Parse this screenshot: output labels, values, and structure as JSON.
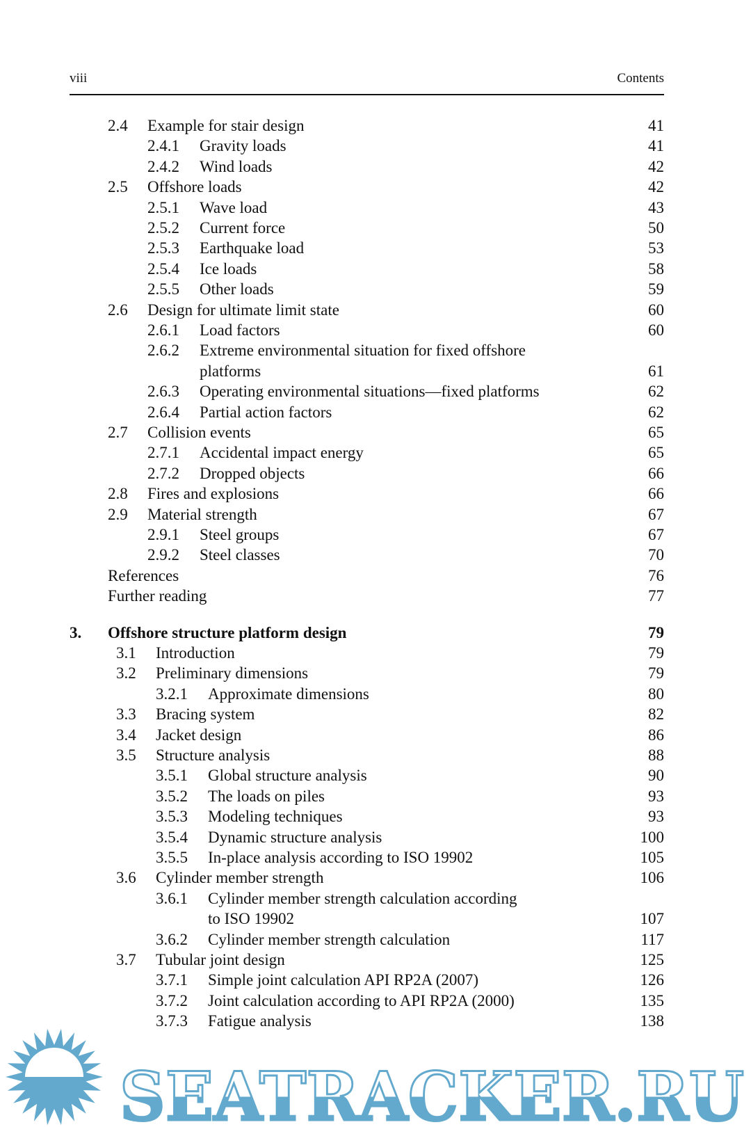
{
  "header": {
    "page_label": "viii",
    "running_title": "Contents"
  },
  "toc": [
    {
      "level": 1,
      "num": "2.4",
      "title": "Example for stair design",
      "page": "41"
    },
    {
      "level": 2,
      "num": "2.4.1",
      "title": "Gravity loads",
      "page": "41"
    },
    {
      "level": 2,
      "num": "2.4.2",
      "title": "Wind loads",
      "page": "42"
    },
    {
      "level": 1,
      "num": "2.5",
      "title": "Offshore loads",
      "page": "42"
    },
    {
      "level": 2,
      "num": "2.5.1",
      "title": "Wave load",
      "page": "43"
    },
    {
      "level": 2,
      "num": "2.5.2",
      "title": "Current force",
      "page": "50"
    },
    {
      "level": 2,
      "num": "2.5.3",
      "title": "Earthquake load",
      "page": "53"
    },
    {
      "level": 2,
      "num": "2.5.4",
      "title": "Ice loads",
      "page": "58"
    },
    {
      "level": 2,
      "num": "2.5.5",
      "title": "Other loads",
      "page": "59"
    },
    {
      "level": 1,
      "num": "2.6",
      "title": "Design for ultimate limit state",
      "page": "60"
    },
    {
      "level": 2,
      "num": "2.6.1",
      "title": "Load factors",
      "page": "60"
    },
    {
      "level": 2,
      "num": "2.6.2",
      "title": "Extreme environmental situation for fixed offshore",
      "title_cont": "platforms",
      "page": "61"
    },
    {
      "level": 2,
      "num": "2.6.3",
      "title": "Operating environmental situations—fixed platforms",
      "page": "62"
    },
    {
      "level": 2,
      "num": "2.6.4",
      "title": "Partial action factors",
      "page": "62"
    },
    {
      "level": 1,
      "num": "2.7",
      "title": "Collision events",
      "page": "65"
    },
    {
      "level": 2,
      "num": "2.7.1",
      "title": "Accidental impact energy",
      "page": "65"
    },
    {
      "level": 2,
      "num": "2.7.2",
      "title": "Dropped objects",
      "page": "66"
    },
    {
      "level": 1,
      "num": "2.8",
      "title": "Fires and explosions",
      "page": "66"
    },
    {
      "level": 1,
      "num": "2.9",
      "title": "Material strength",
      "page": "67"
    },
    {
      "level": 2,
      "num": "2.9.1",
      "title": "Steel groups",
      "page": "67"
    },
    {
      "level": 2,
      "num": "2.9.2",
      "title": "Steel classes",
      "page": "70"
    },
    {
      "level": 1,
      "num": "",
      "title": "References",
      "page": "76"
    },
    {
      "level": 1,
      "num": "",
      "title": "Further reading",
      "page": "77"
    },
    {
      "level": 0,
      "num": "3.",
      "title": "Offshore structure platform design",
      "page": "79",
      "gap_before": true
    },
    {
      "level": 1,
      "num": "3.1",
      "title": "Introduction",
      "page": "79",
      "chapter3": true
    },
    {
      "level": 1,
      "num": "3.2",
      "title": "Preliminary dimensions",
      "page": "79",
      "chapter3": true
    },
    {
      "level": 2,
      "num": "3.2.1",
      "title": "Approximate dimensions",
      "page": "80",
      "chapter3": true
    },
    {
      "level": 1,
      "num": "3.3",
      "title": "Bracing system",
      "page": "82",
      "chapter3": true
    },
    {
      "level": 1,
      "num": "3.4",
      "title": "Jacket design",
      "page": "86",
      "chapter3": true
    },
    {
      "level": 1,
      "num": "3.5",
      "title": "Structure analysis",
      "page": "88",
      "chapter3": true
    },
    {
      "level": 2,
      "num": "3.5.1",
      "title": "Global structure analysis",
      "page": "90",
      "chapter3": true
    },
    {
      "level": 2,
      "num": "3.5.2",
      "title": "The loads on piles",
      "page": "93",
      "chapter3": true
    },
    {
      "level": 2,
      "num": "3.5.3",
      "title": "Modeling techniques",
      "page": "93",
      "chapter3": true
    },
    {
      "level": 2,
      "num": "3.5.4",
      "title": "Dynamic structure analysis",
      "page": "100",
      "chapter3": true
    },
    {
      "level": 2,
      "num": "3.5.5",
      "title": "In-place analysis according to ISO 19902",
      "page": "105",
      "chapter3": true
    },
    {
      "level": 1,
      "num": "3.6",
      "title": "Cylinder member strength",
      "page": "106",
      "chapter3": true
    },
    {
      "level": 2,
      "num": "3.6.1",
      "title": "Cylinder member strength calculation according",
      "title_cont": "to ISO 19902",
      "page": "107",
      "chapter3": true
    },
    {
      "level": 2,
      "num": "3.6.2",
      "title": "Cylinder member strength calculation",
      "page": "117",
      "chapter3": true
    },
    {
      "level": 1,
      "num": "3.7",
      "title": "Tubular joint design",
      "page": "125",
      "chapter3": true
    },
    {
      "level": 2,
      "num": "3.7.1",
      "title": "Simple joint calculation API RP2A (2007)",
      "page": "126",
      "chapter3": true
    },
    {
      "level": 2,
      "num": "3.7.2",
      "title": "Joint calculation according to API RP2A (2000)",
      "page": "135",
      "chapter3": true
    },
    {
      "level": 2,
      "num": "3.7.3",
      "title": "Fatigue analysis",
      "page": "138",
      "chapter3": true
    }
  ],
  "watermark": {
    "text": "SEATRACKER.RU",
    "color": "#62a9cd"
  }
}
